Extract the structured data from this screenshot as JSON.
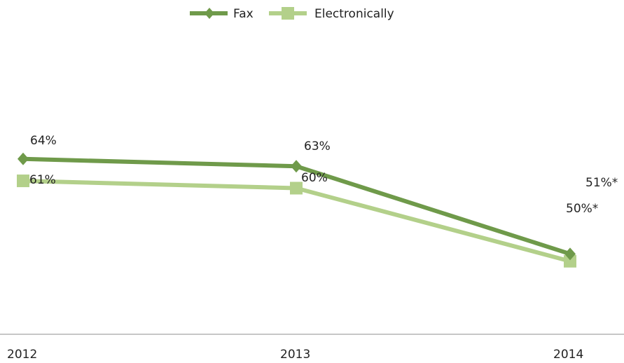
{
  "chart_data": {
    "type": "line",
    "categories": [
      "2012",
      "2013",
      "2014"
    ],
    "series": [
      {
        "name": "Fax",
        "values": [
          64,
          63,
          51
        ],
        "labels": [
          "64%",
          "63%",
          "51%*"
        ],
        "color": "#6f9a4a"
      },
      {
        "name": "Electronically",
        "values": [
          61,
          60,
          50
        ],
        "labels": [
          "61%",
          "60%",
          "50%*"
        ],
        "color": "#b3d08a"
      }
    ],
    "ylim": [
      40,
      80
    ],
    "grid": false,
    "legend": "top-center",
    "markers": {
      "Fax": "diamond",
      "Electronically": "square"
    }
  }
}
